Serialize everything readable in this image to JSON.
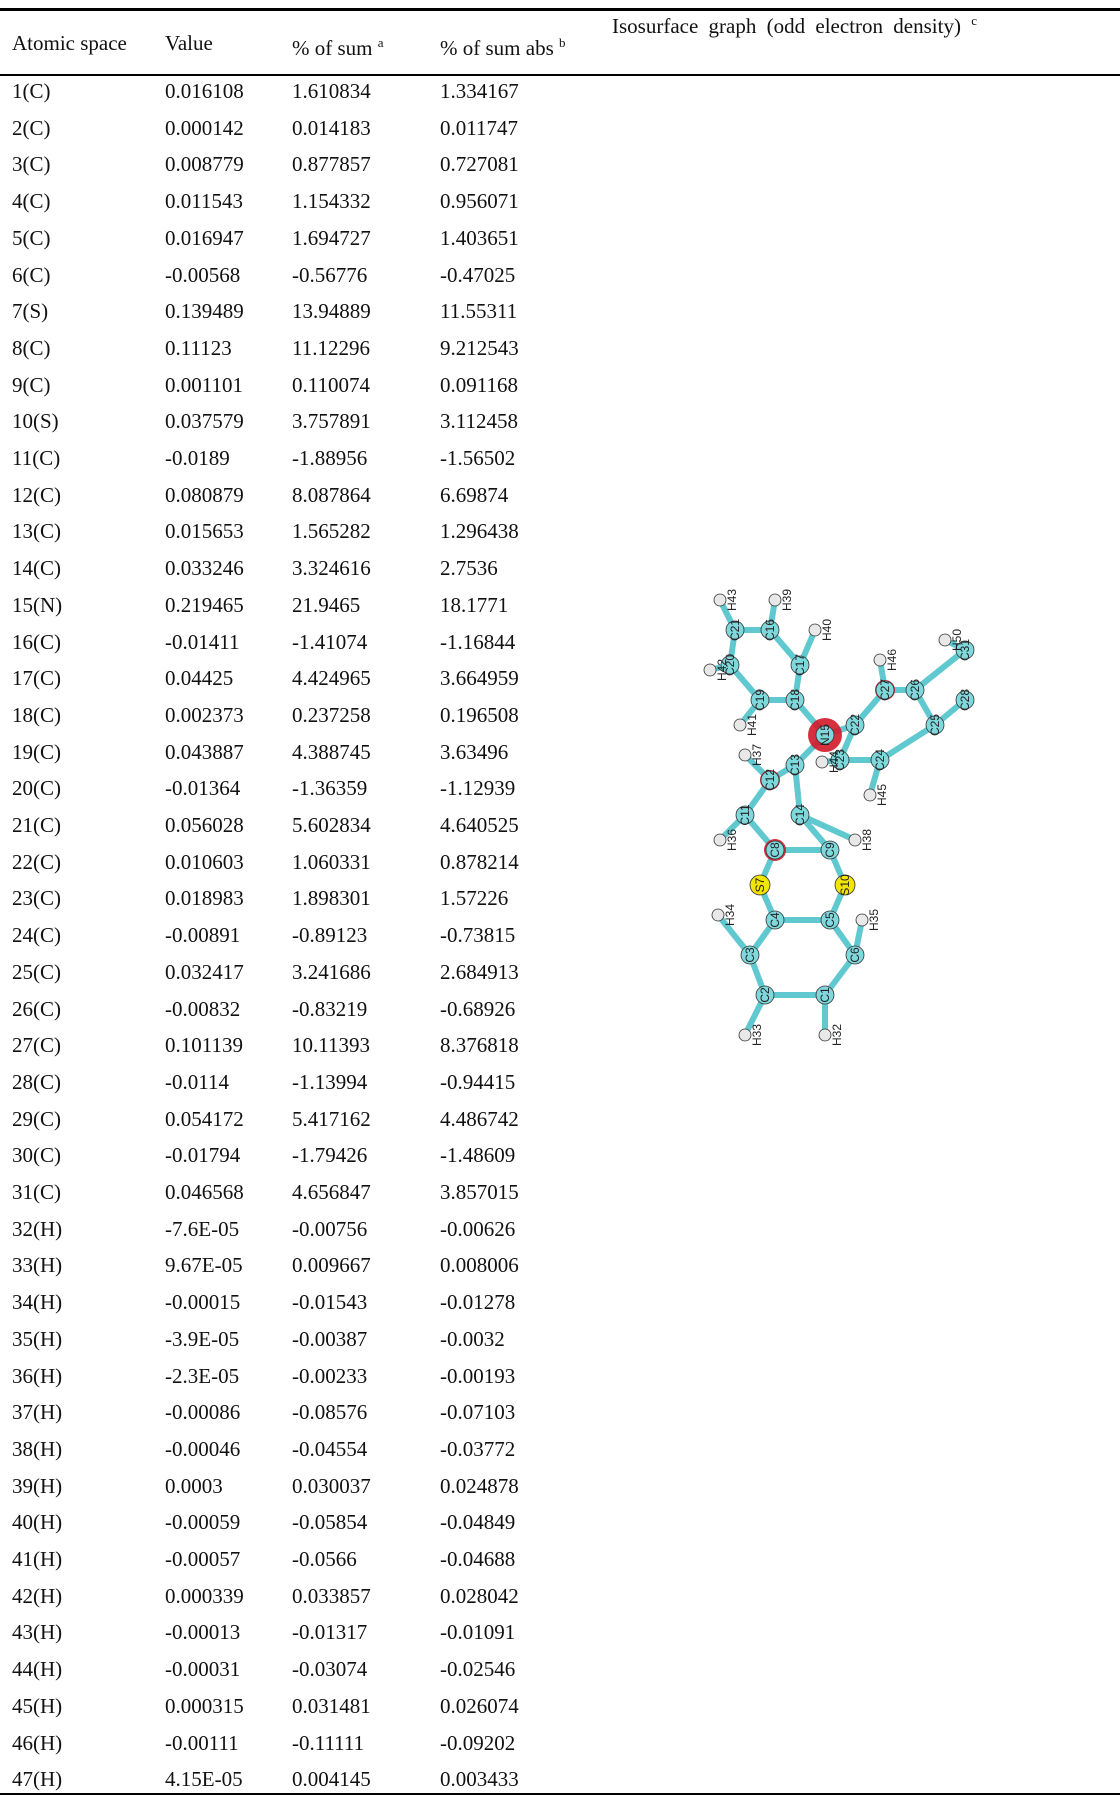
{
  "table": {
    "header": [
      {
        "text": "Atomic space"
      },
      {
        "text": "Value"
      },
      {
        "text": "% of sum",
        "note": "a"
      },
      {
        "text": "% of sum abs",
        "note": "b"
      },
      {
        "text": "Isosurface graph (odd electron density)",
        "note": "c"
      }
    ],
    "rows": [
      [
        "1(C)",
        "0.016108",
        "1.610834",
        "1.334167"
      ],
      [
        "2(C)",
        "0.000142",
        "0.014183",
        "0.011747"
      ],
      [
        "3(C)",
        "0.008779",
        "0.877857",
        "0.727081"
      ],
      [
        "4(C)",
        "0.011543",
        "1.154332",
        "0.956071"
      ],
      [
        "5(C)",
        "0.016947",
        "1.694727",
        "1.403651"
      ],
      [
        "6(C)",
        "-0.00568",
        "-0.56776",
        "-0.47025"
      ],
      [
        "7(S)",
        "0.139489",
        "13.94889",
        "11.55311"
      ],
      [
        "8(C)",
        "0.11123",
        "11.12296",
        "9.212543"
      ],
      [
        "9(C)",
        "0.001101",
        "0.110074",
        "0.091168"
      ],
      [
        "10(S)",
        "0.037579",
        "3.757891",
        "3.112458"
      ],
      [
        "11(C)",
        "-0.0189",
        "-1.88956",
        "-1.56502"
      ],
      [
        "12(C)",
        "0.080879",
        "8.087864",
        "6.69874"
      ],
      [
        "13(C)",
        "0.015653",
        "1.565282",
        "1.296438"
      ],
      [
        "14(C)",
        "0.033246",
        "3.324616",
        "2.7536"
      ],
      [
        "15(N)",
        "0.219465",
        "21.9465",
        "18.1771"
      ],
      [
        "16(C)",
        "-0.01411",
        "-1.41074",
        "-1.16844"
      ],
      [
        "17(C)",
        "0.04425",
        "4.424965",
        "3.664959"
      ],
      [
        "18(C)",
        "0.002373",
        "0.237258",
        "0.196508"
      ],
      [
        "19(C)",
        "0.043887",
        "4.388745",
        "3.63496"
      ],
      [
        "20(C)",
        "-0.01364",
        "-1.36359",
        "-1.12939"
      ],
      [
        "21(C)",
        "0.056028",
        "5.602834",
        "4.640525"
      ],
      [
        "22(C)",
        "0.010603",
        "1.060331",
        "0.878214"
      ],
      [
        "23(C)",
        "0.018983",
        "1.898301",
        "1.57226"
      ],
      [
        "24(C)",
        "-0.00891",
        "-0.89123",
        "-0.73815"
      ],
      [
        "25(C)",
        "0.032417",
        "3.241686",
        "2.684913"
      ],
      [
        "26(C)",
        "-0.00832",
        "-0.83219",
        "-0.68926"
      ],
      [
        "27(C)",
        "0.101139",
        "10.11393",
        "8.376818"
      ],
      [
        "28(C)",
        "-0.0114",
        "-1.13994",
        "-0.94415"
      ],
      [
        "29(C)",
        "0.054172",
        "5.417162",
        "4.486742"
      ],
      [
        "30(C)",
        "-0.01794",
        "-1.79426",
        "-1.48609"
      ],
      [
        "31(C)",
        "0.046568",
        "4.656847",
        "3.857015"
      ],
      [
        "32(H)",
        "-7.6E-05",
        "-0.00756",
        "-0.00626"
      ],
      [
        "33(H)",
        "9.67E-05",
        "0.009667",
        "0.008006"
      ],
      [
        "34(H)",
        "-0.00015",
        "-0.01543",
        "-0.01278"
      ],
      [
        "35(H)",
        "-3.9E-05",
        "-0.00387",
        "-0.0032"
      ],
      [
        "36(H)",
        "-2.3E-05",
        "-0.00233",
        "-0.00193"
      ],
      [
        "37(H)",
        "-0.00086",
        "-0.08576",
        "-0.07103"
      ],
      [
        "38(H)",
        "-0.00046",
        "-0.04554",
        "-0.03772"
      ],
      [
        "39(H)",
        "0.0003",
        "0.030037",
        "0.024878"
      ],
      [
        "40(H)",
        "-0.00059",
        "-0.05854",
        "-0.04849"
      ],
      [
        "41(H)",
        "-0.00057",
        "-0.0566",
        "-0.04688"
      ],
      [
        "42(H)",
        "0.000339",
        "0.033857",
        "0.028042"
      ],
      [
        "43(H)",
        "-0.00013",
        "-0.01317",
        "-0.01091"
      ],
      [
        "44(H)",
        "-0.00031",
        "-0.03074",
        "-0.02546"
      ],
      [
        "45(H)",
        "0.000315",
        "0.031481",
        "0.026074"
      ],
      [
        "46(H)",
        "-0.00111",
        "-0.11111",
        "-0.09202"
      ],
      [
        "47(H)",
        "4.15E-05",
        "0.004145",
        "0.003433"
      ]
    ]
  },
  "molecule": {
    "atoms": [
      "C1",
      "C2",
      "C3",
      "C4",
      "C5",
      "C6",
      "S7",
      "C8",
      "C9",
      "S10",
      "C11",
      "C12",
      "C13",
      "C14",
      "N15",
      "C16",
      "C17",
      "C18",
      "C19",
      "C20",
      "C21",
      "C22",
      "C23",
      "C24",
      "C25",
      "C26",
      "C27",
      "C28",
      "C31",
      "H32",
      "H33",
      "H34",
      "H35",
      "H36",
      "H37",
      "H38",
      "H39",
      "H40",
      "H41",
      "H42",
      "H43",
      "H44",
      "H45",
      "H46",
      "H50"
    ]
  }
}
